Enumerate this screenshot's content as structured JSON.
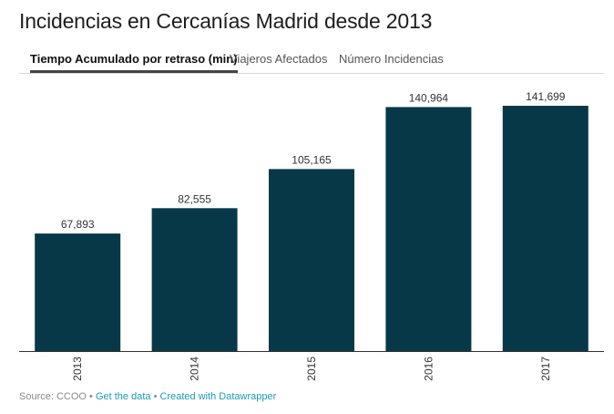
{
  "title": "Incidencias en Cercanías Madrid desde 2013",
  "tabs": [
    {
      "label": "Tiempo Acumulado por retraso (min)",
      "active": true
    },
    {
      "label": "Viajeros Afectados",
      "active": false
    },
    {
      "label": "Número Incidencias",
      "active": false
    }
  ],
  "footer": {
    "source": "Source: CCOO",
    "sep": "•",
    "get_data": "Get the data",
    "created_with": "Created with Datawrapper",
    "link_color": "#1d9bb5"
  },
  "chart_data": {
    "type": "bar",
    "categories": [
      "2013",
      "2014",
      "2015",
      "2016",
      "2017"
    ],
    "values": [
      67893,
      82555,
      105165,
      140964,
      141699
    ],
    "value_labels": [
      "67,893",
      "82,555",
      "105,165",
      "140,964",
      "141,699"
    ],
    "title": "Incidencias en Cercanías Madrid desde 2013",
    "xlabel": "",
    "ylabel": "",
    "ylim": [
      0,
      141699
    ],
    "bar_color": "#073847",
    "tick_label_rotation": "vertical",
    "grid": false
  }
}
